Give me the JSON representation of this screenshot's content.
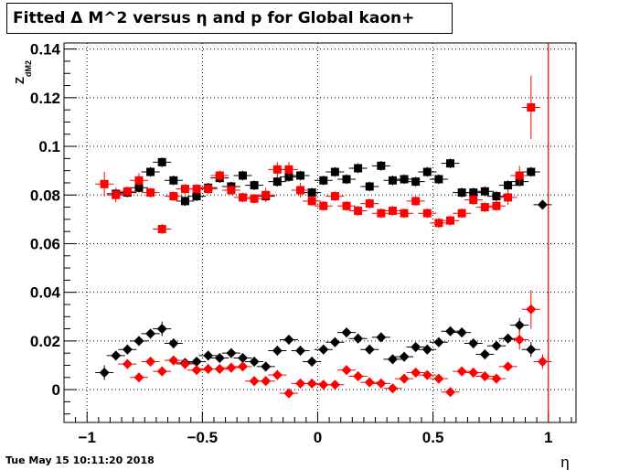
{
  "title": "Fitted Δ M^2 versus η and p for Global kaon+",
  "timestamp": "Tue May 15 10:11:20 2018",
  "chart_data": {
    "type": "scatter",
    "title": "Fitted Δ M^2 versus η and p for Global kaon+",
    "xlabel": "η",
    "ylabel": "Z",
    "ylabel_sub": "dM2",
    "xlim": [
      -1.1,
      1.12
    ],
    "ylim": [
      -0.0135,
      0.1425
    ],
    "grid": true,
    "xticks": [
      {
        "value": -1,
        "label": "−1"
      },
      {
        "value": -0.5,
        "label": "−0.5"
      },
      {
        "value": 0,
        "label": "0"
      },
      {
        "value": 0.5,
        "label": "0.5"
      },
      {
        "value": 1,
        "label": "1"
      }
    ],
    "yticks": [
      {
        "value": 0,
        "label": "0"
      },
      {
        "value": 0.02,
        "label": "0.02"
      },
      {
        "value": 0.04,
        "label": "0.04"
      },
      {
        "value": 0.06,
        "label": "0.06"
      },
      {
        "value": 0.08,
        "label": "0.08"
      },
      {
        "value": 0.1,
        "label": "0.1"
      },
      {
        "value": 0.12,
        "label": "0.12"
      },
      {
        "value": 0.14,
        "label": "0.14"
      }
    ],
    "vline": {
      "x": 1.0,
      "ylim": [
        -0.0135,
        0.1425
      ],
      "color": "#ff0000"
    },
    "series": [
      {
        "marker": "square",
        "color": "#000000",
        "x": [
          -0.875,
          -0.825,
          -0.775,
          -0.725,
          -0.675,
          -0.625,
          -0.575,
          -0.525,
          -0.475,
          -0.425,
          -0.375,
          -0.325,
          -0.275,
          -0.225,
          -0.175,
          -0.125,
          -0.075,
          -0.025,
          0.025,
          0.075,
          0.125,
          0.175,
          0.225,
          0.275,
          0.325,
          0.375,
          0.425,
          0.475,
          0.525,
          0.575,
          0.625,
          0.675,
          0.725,
          0.775,
          0.825,
          0.875,
          0.925
        ],
        "y": [
          0.0805,
          0.081,
          0.083,
          0.0895,
          0.0935,
          0.086,
          0.0775,
          0.0795,
          0.083,
          0.087,
          0.0835,
          0.088,
          0.084,
          0.0795,
          0.0855,
          0.0875,
          0.088,
          0.081,
          0.086,
          0.0895,
          0.0865,
          0.091,
          0.0835,
          0.092,
          0.086,
          0.0865,
          0.0855,
          0.0895,
          0.0865,
          0.093,
          0.081,
          0.081,
          0.0815,
          0.0795,
          0.084,
          0.0855,
          0.0895
        ]
      },
      {
        "marker": "square",
        "color": "#ff0000",
        "x": [
          -0.925,
          -0.875,
          -0.825,
          -0.775,
          -0.725,
          -0.675,
          -0.625,
          -0.575,
          -0.525,
          -0.475,
          -0.425,
          -0.375,
          -0.325,
          -0.275,
          -0.225,
          -0.175,
          -0.125,
          -0.075,
          -0.025,
          0.025,
          0.075,
          0.125,
          0.175,
          0.225,
          0.275,
          0.325,
          0.375,
          0.425,
          0.475,
          0.525,
          0.575,
          0.625,
          0.675,
          0.725,
          0.775,
          0.825,
          0.875,
          0.925
        ],
        "y": [
          0.0845,
          0.08,
          0.0815,
          0.086,
          0.081,
          0.066,
          0.0795,
          0.0825,
          0.0825,
          0.0825,
          0.088,
          0.082,
          0.079,
          0.0785,
          0.08,
          0.0905,
          0.0905,
          0.082,
          0.0775,
          0.0755,
          0.0795,
          0.0755,
          0.0735,
          0.0765,
          0.0725,
          0.0735,
          0.0725,
          0.0775,
          0.0725,
          0.0685,
          0.0695,
          0.0725,
          0.078,
          0.075,
          0.0755,
          0.079,
          0.088,
          0.116
        ],
        "yerr": [
          0.005,
          0.003,
          0.002,
          0.003,
          0.002,
          0.002,
          0.002,
          0.002,
          0.002,
          0.002,
          0.002,
          0.002,
          0.002,
          0.002,
          0.003,
          0.003,
          0.003,
          0.003,
          0.002,
          0.002,
          0.002,
          0.002,
          0.002,
          0.002,
          0.002,
          0.002,
          0.002,
          0.002,
          0.002,
          0.002,
          0.002,
          0.002,
          0.002,
          0.002,
          0.002,
          0.003,
          0.004,
          0.013
        ]
      },
      {
        "marker": "diamond",
        "color": "#000000",
        "x": [
          -0.925,
          -0.875,
          -0.825,
          -0.775,
          -0.725,
          -0.675,
          -0.625,
          -0.575,
          -0.525,
          -0.475,
          -0.425,
          -0.375,
          -0.325,
          -0.275,
          -0.225,
          -0.175,
          -0.125,
          -0.075,
          -0.025,
          0.025,
          0.075,
          0.125,
          0.175,
          0.225,
          0.275,
          0.325,
          0.375,
          0.425,
          0.475,
          0.525,
          0.575,
          0.625,
          0.675,
          0.725,
          0.775,
          0.825,
          0.875,
          0.925,
          0.975
        ],
        "y": [
          0.007,
          0.014,
          0.0165,
          0.02,
          0.023,
          0.025,
          0.019,
          0.011,
          0.0115,
          0.014,
          0.013,
          0.015,
          0.013,
          0.0115,
          0.0095,
          0.016,
          0.0205,
          0.016,
          0.0115,
          0.0165,
          0.0195,
          0.0235,
          0.021,
          0.0165,
          0.0215,
          0.0125,
          0.0135,
          0.0175,
          0.0165,
          0.0195,
          0.024,
          0.0235,
          0.019,
          0.0145,
          0.018,
          0.021,
          0.0265,
          0.0165,
          0.076
        ],
        "yerr": [
          0.003,
          0.002,
          0.002,
          0.002,
          0.002,
          0.003,
          0.002,
          0.002,
          0.002,
          0.002,
          0.002,
          0.002,
          0.002,
          0.002,
          0.002,
          0.002,
          0.002,
          0.002,
          0.002,
          0.002,
          0.002,
          0.002,
          0.002,
          0.002,
          0.002,
          0.002,
          0.002,
          0.002,
          0.002,
          0.002,
          0.002,
          0.002,
          0.002,
          0.002,
          0.002,
          0.002,
          0.003,
          0.003,
          0
        ]
      },
      {
        "marker": "diamond",
        "color": "#ff0000",
        "x": [
          -0.825,
          -0.775,
          -0.725,
          -0.675,
          -0.625,
          -0.575,
          -0.525,
          -0.475,
          -0.425,
          -0.375,
          -0.325,
          -0.275,
          -0.225,
          -0.175,
          -0.125,
          -0.075,
          -0.025,
          0.025,
          0.075,
          0.125,
          0.175,
          0.225,
          0.275,
          0.325,
          0.375,
          0.425,
          0.475,
          0.525,
          0.575,
          0.625,
          0.675,
          0.725,
          0.775,
          0.825,
          0.875,
          0.925,
          0.975
        ],
        "y": [
          0.0105,
          0.005,
          0.0115,
          0.0075,
          0.012,
          0.0105,
          0.008,
          0.0085,
          0.0085,
          0.009,
          0.0095,
          0.0035,
          0.0035,
          0.006,
          -0.0015,
          0.0025,
          0.0025,
          0.002,
          0.002,
          0.008,
          0.0055,
          0.003,
          0.0025,
          0.0005,
          0.0045,
          0.007,
          0.006,
          0.0045,
          -0.001,
          0.0075,
          0.007,
          0.0055,
          0.0045,
          0.0095,
          0.0205,
          0.033,
          0.0115
        ],
        "yerr": [
          0.002,
          0.002,
          0.002,
          0.002,
          0.002,
          0.002,
          0.002,
          0.002,
          0.002,
          0.002,
          0.002,
          0.002,
          0.002,
          0.002,
          0.002,
          0.002,
          0.002,
          0.002,
          0.002,
          0.002,
          0.002,
          0.002,
          0.002,
          0.002,
          0.002,
          0.002,
          0.002,
          0.002,
          0.002,
          0.002,
          0.002,
          0.002,
          0.002,
          0.002,
          0.004,
          0.008,
          0.003
        ]
      }
    ]
  }
}
